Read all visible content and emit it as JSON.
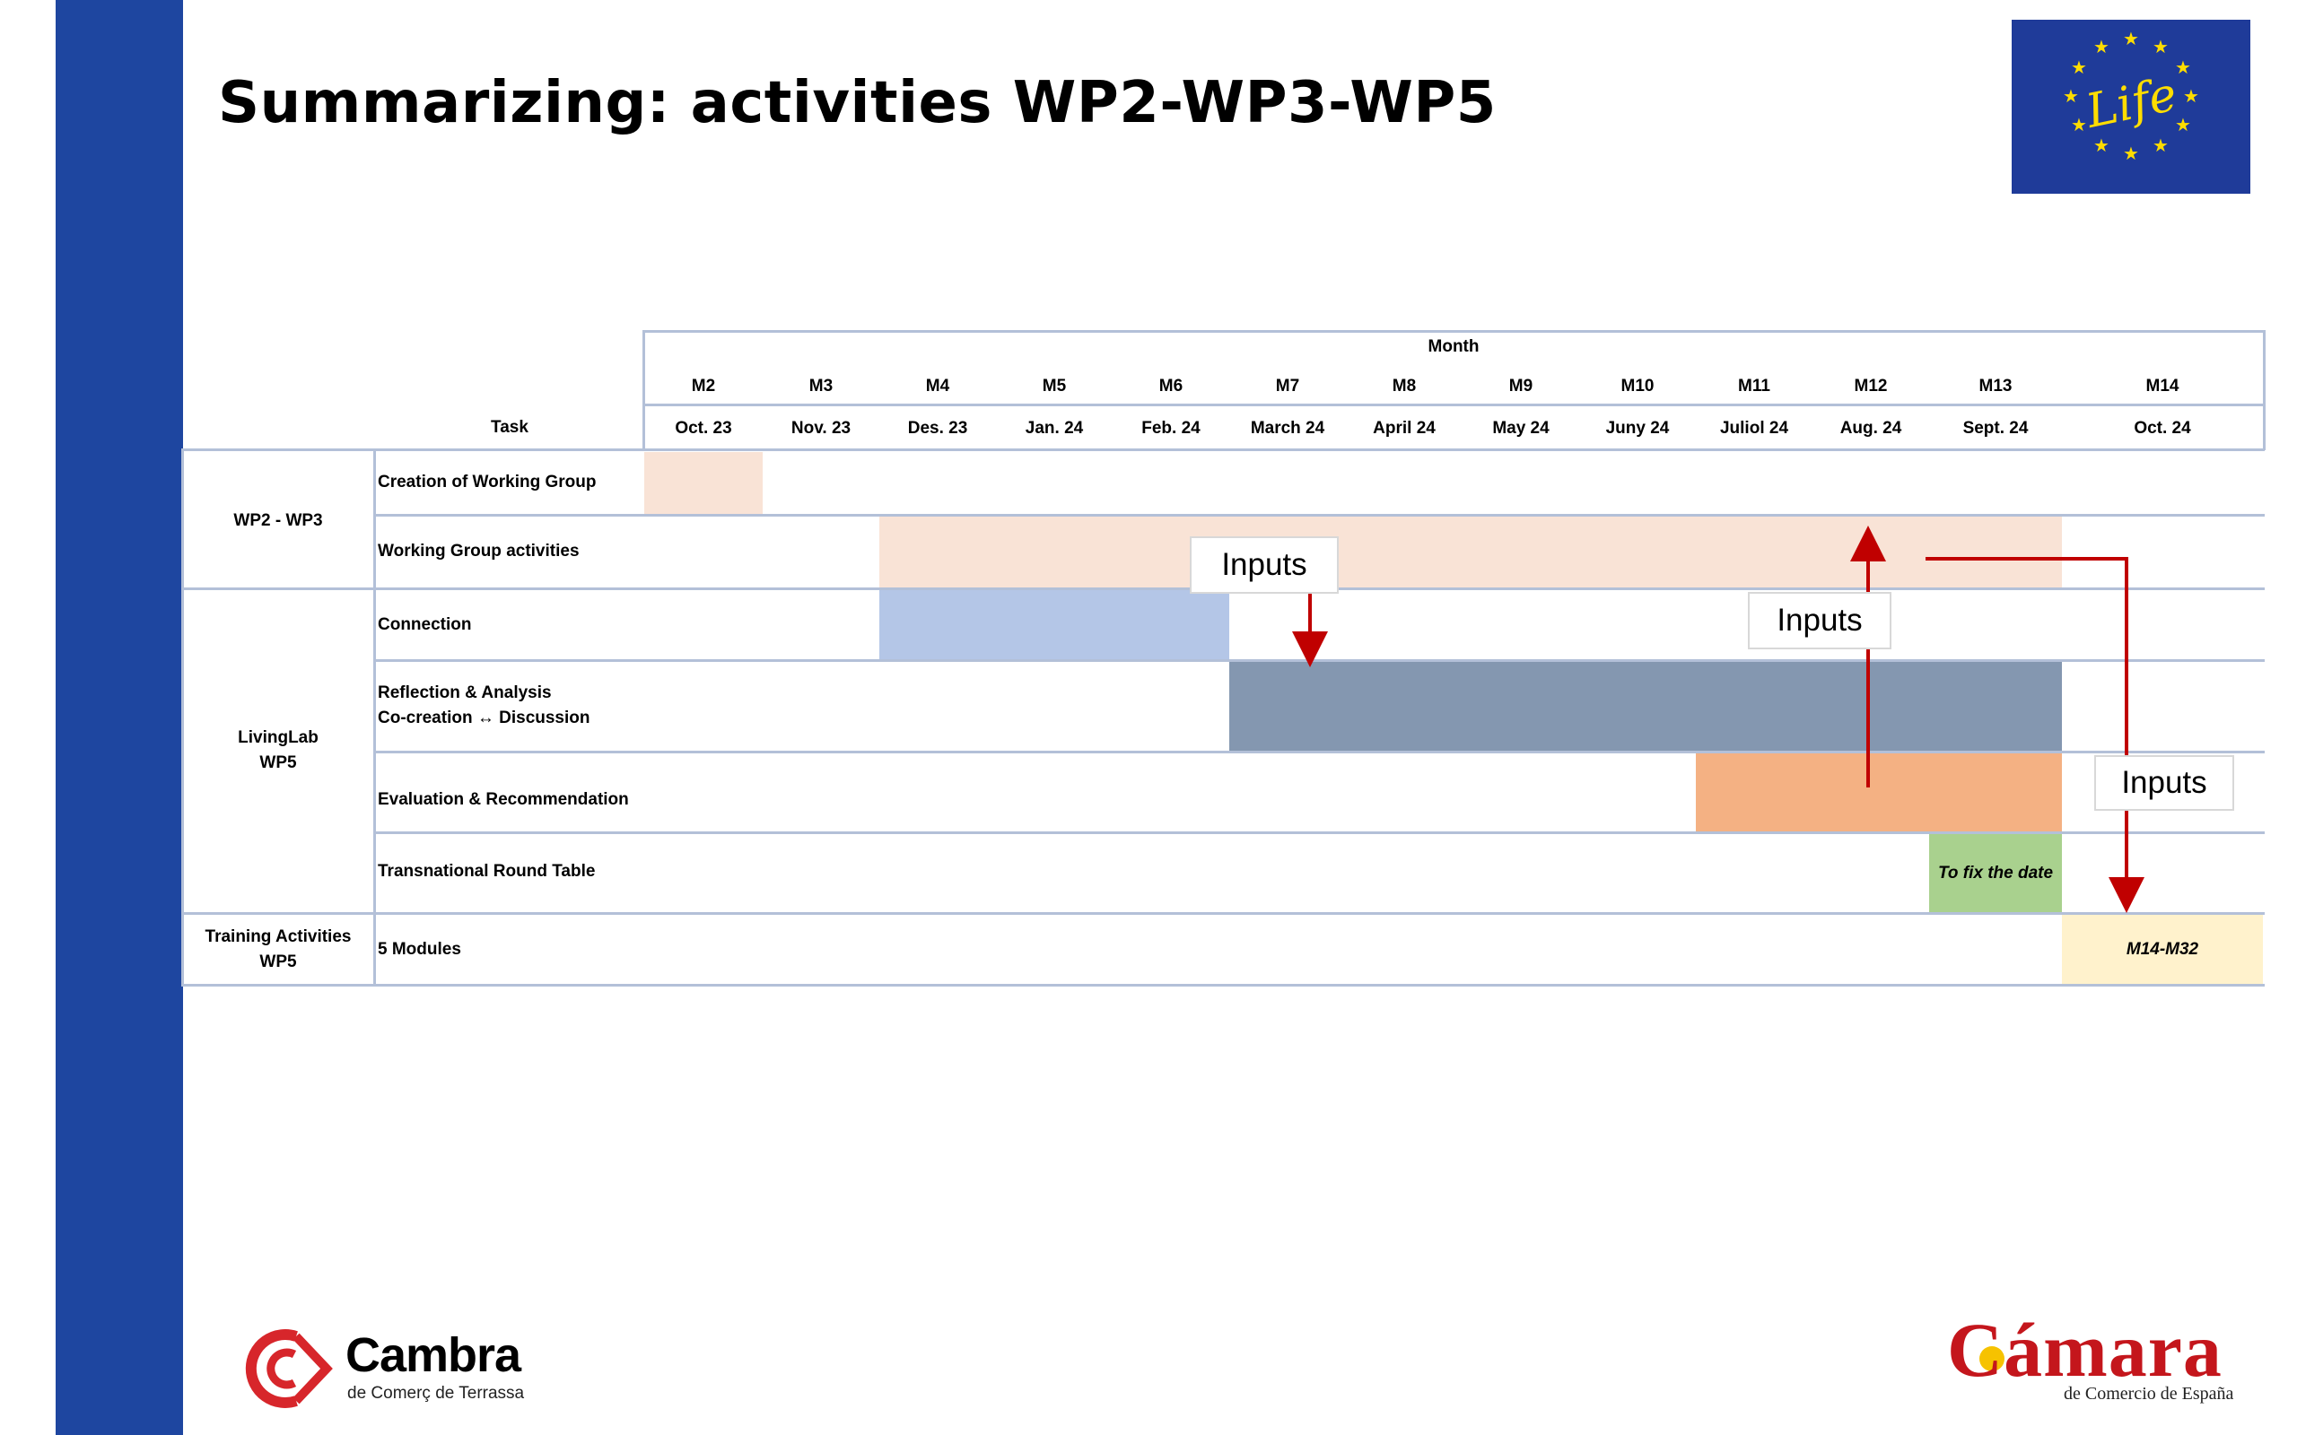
{
  "slide": {
    "title": "Summarizing: activities WP2-WP3-WP5"
  },
  "gantt": {
    "month_header": "Month",
    "task_header": "Task",
    "months": [
      {
        "code": "M2",
        "date": "Oct. 23"
      },
      {
        "code": "M3",
        "date": "Nov. 23"
      },
      {
        "code": "M4",
        "date": "Des. 23"
      },
      {
        "code": "M5",
        "date": "Jan. 24"
      },
      {
        "code": "M6",
        "date": "Feb. 24"
      },
      {
        "code": "M7",
        "date": "March 24"
      },
      {
        "code": "M8",
        "date": "April 24"
      },
      {
        "code": "M9",
        "date": "May 24"
      },
      {
        "code": "M10",
        "date": "Juny 24"
      },
      {
        "code": "M11",
        "date": "Juliol 24"
      },
      {
        "code": "M12",
        "date": "Aug. 24"
      },
      {
        "code": "M13",
        "date": "Sept. 24"
      },
      {
        "code": "M14",
        "date": "Oct. 24"
      }
    ],
    "groups": [
      {
        "label_line1": "WP2 - WP3",
        "label_line2": ""
      },
      {
        "label_line1": "LivingLab",
        "label_line2": "WP5"
      },
      {
        "label_line1": "Training Activities",
        "label_line2": "WP5"
      }
    ],
    "tasks": [
      {
        "name": "Creation of Working Group",
        "start": "M2",
        "end": "M2",
        "color": "#f9e3d6"
      },
      {
        "name": "Working Group activities",
        "start": "M4",
        "end": "M13",
        "color": "#f9e3d6"
      },
      {
        "name": "Connection",
        "start": "M4",
        "end": "M6",
        "color": "#b4c6e7"
      },
      {
        "name": "Reflection & Analysis",
        "name_line2": "Co-creation  ↔  Discussion",
        "start": "M7",
        "end": "M13",
        "color": "#8497b0"
      },
      {
        "name": "Evaluation & Recommendation",
        "start": "M11",
        "end": "M13",
        "color": "#f4b183"
      },
      {
        "name": "Transnational Round Table",
        "start": "M13",
        "end": "M13",
        "color": "#a9d18e",
        "bar_text": "To fix the date"
      },
      {
        "name": "5 Modules",
        "start": "M14",
        "end": "M14",
        "color": "#fff2cc",
        "bar_text": "M14-M32"
      }
    ],
    "callouts": [
      "Inputs",
      "Inputs",
      "Inputs"
    ],
    "arrow_color": "#c00000"
  },
  "logos": {
    "eu_life": "Life",
    "cambra_name": "Cambra",
    "cambra_sub": "de Comerç de Terrassa",
    "camara_name": "Cámara",
    "camara_sub": "de Comercio de España"
  }
}
